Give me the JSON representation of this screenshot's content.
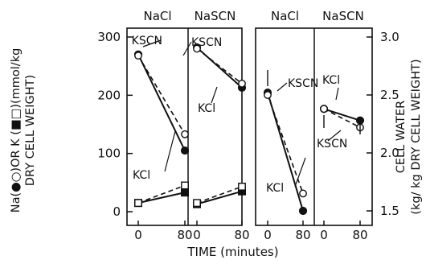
{
  "chart_data": [
    {
      "type": "line",
      "panel": "left",
      "columns": [
        "NaCl",
        "NaSCN"
      ],
      "x_ticks": [
        "0",
        "80",
        "0",
        "80"
      ],
      "y_ticks": [
        "0",
        "100",
        "200",
        "300"
      ],
      "ylabel_line1": "Na(●○)OR K (■□)(mmol/kg",
      "ylabel_line2": "DRY CELL WEIGHT)",
      "ylim": [
        0,
        300
      ],
      "series": [
        {
          "name": "KSCN",
          "column": "NaCl",
          "marker": "filled-circle",
          "style": "solid",
          "x": [
            0,
            80
          ],
          "y": [
            270,
            105
          ]
        },
        {
          "name": "KCl",
          "column": "NaCl",
          "marker": "open-circle",
          "style": "dashed",
          "x": [
            0,
            80
          ],
          "y": [
            268,
            133
          ]
        },
        {
          "column": "NaCl",
          "marker": "filled-square",
          "style": "solid",
          "x": [
            0,
            80
          ],
          "y": [
            15,
            33
          ]
        },
        {
          "column": "NaCl",
          "marker": "open-square",
          "style": "dashed",
          "x": [
            0,
            80
          ],
          "y": [
            15,
            45
          ]
        },
        {
          "name": "KSCN",
          "column": "NaSCN",
          "marker": "filled-circle",
          "style": "solid",
          "x": [
            0,
            80
          ],
          "y": [
            282,
            213
          ]
        },
        {
          "name": "KCl",
          "column": "NaSCN",
          "marker": "open-circle",
          "style": "dashed",
          "x": [
            0,
            80
          ],
          "y": [
            280,
            220
          ]
        },
        {
          "column": "NaSCN",
          "marker": "filled-square",
          "style": "solid",
          "x": [
            0,
            80
          ],
          "y": [
            13,
            35
          ]
        },
        {
          "column": "NaSCN",
          "marker": "open-square",
          "style": "dashed",
          "x": [
            0,
            80
          ],
          "y": [
            15,
            43
          ]
        }
      ],
      "annotations": [
        {
          "text": "KSCN",
          "column": "NaCl"
        },
        {
          "text": "KCl",
          "column": "NaCl"
        },
        {
          "text": "KSCN",
          "column": "NaSCN"
        },
        {
          "text": "KCl",
          "column": "NaSCN"
        }
      ]
    },
    {
      "type": "line",
      "panel": "right",
      "columns": [
        "NaCl",
        "NaSCN"
      ],
      "x_ticks": [
        "0",
        "80",
        "0",
        "80"
      ],
      "y_ticks": [
        "1.5",
        "2.0",
        "2.5",
        "3.0"
      ],
      "ylabel_line1": "CELL WATER",
      "ylabel_line2": "(kg/ kg DRY CELL WEIGHT)",
      "ylim": [
        1.45,
        3.05
      ],
      "series": [
        {
          "name": "KSCN",
          "column": "NaCl",
          "marker": "filled-circle",
          "style": "solid",
          "x": [
            0,
            80
          ],
          "y": [
            2.52,
            1.5
          ]
        },
        {
          "name": "KCl",
          "column": "NaCl",
          "marker": "open-circle",
          "style": "dashed",
          "x": [
            0,
            80
          ],
          "y": [
            2.5,
            1.65
          ]
        },
        {
          "name": "KCl",
          "column": "NaSCN",
          "marker": "filled-circle",
          "style": "solid",
          "x": [
            0,
            80
          ],
          "y": [
            2.38,
            2.28
          ]
        },
        {
          "name": "KSCN",
          "column": "NaSCN",
          "marker": "open-circle",
          "style": "dashed",
          "x": [
            0,
            80
          ],
          "y": [
            2.38,
            2.22
          ]
        }
      ],
      "annotations": [
        {
          "text": "KSCN",
          "column": "NaCl"
        },
        {
          "text": "KCl",
          "column": "NaCl"
        },
        {
          "text": "KCl",
          "column": "NaSCN"
        },
        {
          "text": "KSCN",
          "column": "NaSCN"
        }
      ]
    }
  ],
  "xlabel": "TIME (minutes)"
}
